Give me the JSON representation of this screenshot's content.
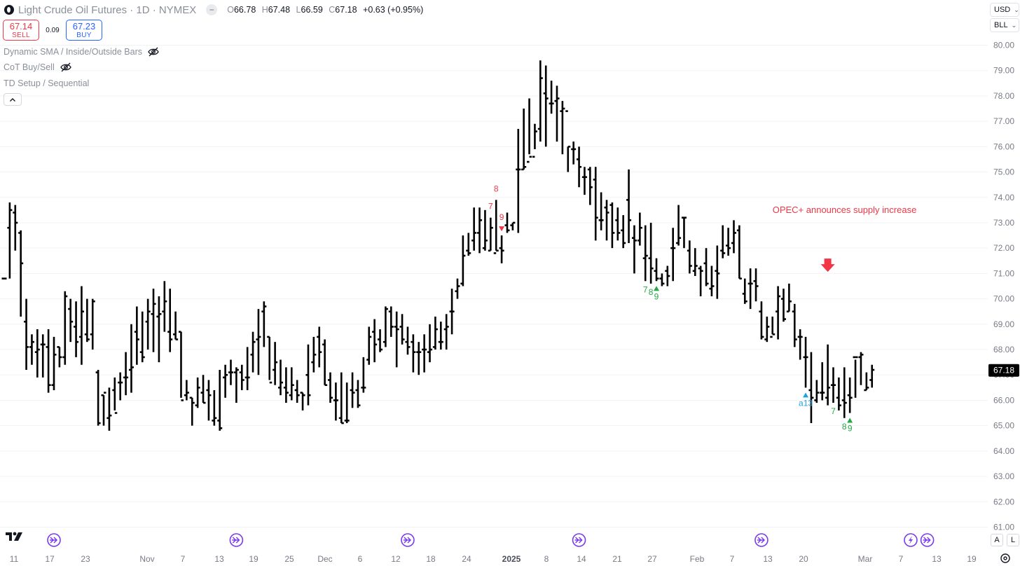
{
  "header": {
    "title": "Light Crude Oil Futures · 1D · NYMEX",
    "ohlc": {
      "o_label": "O",
      "o": "66.78",
      "h_label": "H",
      "h": "67.48",
      "l_label": "L",
      "l": "66.59",
      "c_label": "C",
      "c": "67.18",
      "change": "+0.63 (+0.95%)"
    }
  },
  "trade": {
    "sell_price": "67.14",
    "sell_label": "SELL",
    "spread": "0.09",
    "buy_price": "67.23",
    "buy_label": "BUY"
  },
  "indicators": [
    {
      "name": "Dynamic SMA / Inside/Outside Bars",
      "hidden": true
    },
    {
      "name": "CoT Buy/Sell",
      "hidden": true
    },
    {
      "name": "TD Setup / Sequential",
      "hidden": false
    }
  ],
  "controls": {
    "currency": "USD",
    "unit": "BLL",
    "auto_label": "A",
    "log_label": "L"
  },
  "colors": {
    "bar": "#000000",
    "sell": "#f23645",
    "buy_signal": "#22a846",
    "countdown": "#1fa3e0",
    "event_icon": "#7c3aed",
    "grid": "#f2f3f5",
    "price_tag_bg": "#000000"
  },
  "chart_data": {
    "type": "ohlc",
    "symbol": "Light Crude Oil Futures",
    "interval": "1D",
    "ylim": [
      61,
      80.5
    ],
    "y_ticks": [
      "80.00",
      "79.00",
      "78.00",
      "77.00",
      "76.00",
      "75.00",
      "74.00",
      "73.00",
      "72.00",
      "71.00",
      "70.00",
      "69.00",
      "68.00",
      "67.00",
      "66.00",
      "65.00",
      "64.00",
      "63.00",
      "62.00",
      "61.00"
    ],
    "x_ticks": [
      "11",
      "17",
      "23",
      "Nov",
      "7",
      "13",
      "19",
      "25",
      "Dec",
      "6",
      "12",
      "18",
      "24",
      "2025",
      "8",
      "14",
      "21",
      "27",
      "Feb",
      "7",
      "13",
      "20",
      "Mar",
      "7",
      "13",
      "19"
    ],
    "last_price": "67.18",
    "bars": [
      [
        70.8,
        70.8,
        70.8,
        70.8
      ],
      [
        72.8,
        73.8,
        70.8,
        73.5
      ],
      [
        73.4,
        73.7,
        71.9,
        73.0
      ],
      [
        72.6,
        72.7,
        69.3,
        71.4
      ],
      [
        69.1,
        70.0,
        67.2,
        68.1
      ],
      [
        68.1,
        68.6,
        67.4,
        68.3
      ],
      [
        67.9,
        68.8,
        66.9,
        68.0
      ],
      [
        68.2,
        68.6,
        66.9,
        68.2
      ],
      [
        68.1,
        68.8,
        66.3,
        66.6
      ],
      [
        66.6,
        68.5,
        66.4,
        67.8
      ],
      [
        68.1,
        68.1,
        67.3,
        67.7
      ],
      [
        67.7,
        70.3,
        67.4,
        70.1
      ],
      [
        69.6,
        70.0,
        68.3,
        69.1
      ],
      [
        68.9,
        69.9,
        67.7,
        68.3
      ],
      [
        68.5,
        70.5,
        67.4,
        69.5
      ],
      [
        68.6,
        70.0,
        68.3,
        68.4
      ],
      [
        68.6,
        70.0,
        68.0,
        69.9
      ],
      [
        67.1,
        67.2,
        65.0,
        65.1
      ],
      [
        66.2,
        66.2,
        65.0,
        66.3
      ],
      [
        65.3,
        66.5,
        64.8,
        65.4
      ],
      [
        66.4,
        66.9,
        65.6,
        65.5
      ],
      [
        66.7,
        67.1,
        66.0,
        66.7
      ],
      [
        66.9,
        67.9,
        66.2,
        66.9
      ],
      [
        67.2,
        69.0,
        66.3,
        67.3
      ],
      [
        68.7,
        69.7,
        67.4,
        68.4
      ],
      [
        67.9,
        69.5,
        67.5,
        67.7
      ],
      [
        69.1,
        70.0,
        68.0,
        69.5
      ],
      [
        69.4,
        70.4,
        67.9,
        69.8
      ],
      [
        69.3,
        70.1,
        67.5,
        69.4
      ],
      [
        69.5,
        70.7,
        68.7,
        69.9
      ],
      [
        68.7,
        70.4,
        67.9,
        68.4
      ],
      [
        68.6,
        69.5,
        68.4,
        68.4
      ],
      [
        68.7,
        68.7,
        66.1,
        66.0
      ],
      [
        66.2,
        66.8,
        66.0,
        66.3
      ],
      [
        66.1,
        66.1,
        65.0,
        65.9
      ],
      [
        65.8,
        66.9,
        65.7,
        66.5
      ],
      [
        66.3,
        67.0,
        65.9,
        65.9
      ],
      [
        66.4,
        66.8,
        65.2,
        66.2
      ],
      [
        65.2,
        66.4,
        65.0,
        65.3
      ],
      [
        65.2,
        67.2,
        64.8,
        64.9
      ],
      [
        66.9,
        67.4,
        66.1,
        67.0
      ],
      [
        67.1,
        67.6,
        66.6,
        67.1
      ],
      [
        67.1,
        67.3,
        65.9,
        67.2
      ],
      [
        67.1,
        67.4,
        66.4,
        66.8
      ],
      [
        66.9,
        68.1,
        66.4,
        66.9
      ],
      [
        67.8,
        68.7,
        67.1,
        68.3
      ],
      [
        68.4,
        69.6,
        67.0,
        68.5
      ],
      [
        69.5,
        69.9,
        68.1,
        69.7
      ],
      [
        68.5,
        68.5,
        66.8,
        66.7
      ],
      [
        67.2,
        68.3,
        66.6,
        67.5
      ],
      [
        66.5,
        67.6,
        66.2,
        66.7
      ],
      [
        66.5,
        67.3,
        65.9,
        66.3
      ],
      [
        66.2,
        67.3,
        66.0,
        66.6
      ],
      [
        66.4,
        66.8,
        65.9,
        66.2
      ],
      [
        66.3,
        66.3,
        65.6,
        66.2
      ],
      [
        67.0,
        68.2,
        65.8,
        66.2
      ],
      [
        67.5,
        68.5,
        67.1,
        67.8
      ],
      [
        68.5,
        68.9,
        67.3,
        67.9
      ],
      [
        68.2,
        68.4,
        66.6,
        66.6
      ],
      [
        66.8,
        67.1,
        65.9,
        66.1
      ],
      [
        66.0,
        66.7,
        65.2,
        66.0
      ],
      [
        65.3,
        67.1,
        65.1,
        65.1
      ],
      [
        65.2,
        66.7,
        65.1,
        65.2
      ],
      [
        66.4,
        67.1,
        65.7,
        66.3
      ],
      [
        66.4,
        66.8,
        65.7,
        65.8
      ],
      [
        66.5,
        67.7,
        66.3,
        66.5
      ],
      [
        67.6,
        68.9,
        67.4,
        68.5
      ],
      [
        68.7,
        69.2,
        67.5,
        68.2
      ],
      [
        68.4,
        68.8,
        67.9,
        68.0
      ],
      [
        68.3,
        69.7,
        68.1,
        69.6
      ],
      [
        69.5,
        69.7,
        68.5,
        68.9
      ],
      [
        68.9,
        69.5,
        67.3,
        68.8
      ],
      [
        68.9,
        69.4,
        68.2,
        68.4
      ],
      [
        68.3,
        68.9,
        67.8,
        68.1
      ],
      [
        68.3,
        68.6,
        67.1,
        67.9
      ],
      [
        67.9,
        68.3,
        67.0,
        67.9
      ],
      [
        68.0,
        68.6,
        67.1,
        68.0
      ],
      [
        67.9,
        69.0,
        67.5,
        68.0
      ],
      [
        68.1,
        69.3,
        68.0,
        68.8
      ],
      [
        68.3,
        69.1,
        68.0,
        68.3
      ],
      [
        68.8,
        69.4,
        68.0,
        68.9
      ],
      [
        69.5,
        70.4,
        68.6,
        69.5
      ],
      [
        70.3,
        70.8,
        70.0,
        70.5
      ],
      [
        70.6,
        72.5,
        70.5,
        71.7
      ],
      [
        71.9,
        72.6,
        71.7,
        71.8
      ],
      [
        72.3,
        73.6,
        71.9,
        72.6
      ],
      [
        72.6,
        73.6,
        71.8,
        73.1
      ],
      [
        72.0,
        73.5,
        71.9,
        72.3
      ],
      [
        71.9,
        73.2,
        71.9,
        72.8
      ],
      [
        71.8,
        73.9,
        71.9,
        71.9
      ],
      [
        72.0,
        72.5,
        71.4,
        71.9
      ],
      [
        72.9,
        73.4,
        72.6,
        72.7
      ],
      [
        72.9,
        73.0,
        72.7,
        73.0
      ],
      [
        75.1,
        76.7,
        72.6,
        75.1
      ],
      [
        75.1,
        77.5,
        75.1,
        75.2
      ],
      [
        75.4,
        77.9,
        75.7,
        75.6
      ],
      [
        75.6,
        76.9,
        75.9,
        76.6
      ],
      [
        76.7,
        79.4,
        76.2,
        78.7
      ],
      [
        78.1,
        79.2,
        76.0,
        77.9
      ],
      [
        77.7,
        78.6,
        77.3,
        77.7
      ],
      [
        77.8,
        78.4,
        76.2,
        77.9
      ],
      [
        77.4,
        77.8,
        75.7,
        77.5
      ],
      [
        77.4,
        76.0,
        75.0,
        76.0
      ],
      [
        75.9,
        76.2,
        75.3,
        75.9
      ],
      [
        75.5,
        76.0,
        74.4,
        75.2
      ],
      [
        74.8,
        75.2,
        74.1,
        74.8
      ],
      [
        75.1,
        75.2,
        73.7,
        74.4
      ],
      [
        74.7,
        75.2,
        72.3,
        73.2
      ],
      [
        73.1,
        74.2,
        72.7,
        73.1
      ],
      [
        73.6,
        73.9,
        72.3,
        73.4
      ],
      [
        73.7,
        73.8,
        72.0,
        72.6
      ],
      [
        73.1,
        73.6,
        72.3,
        72.6
      ],
      [
        72.7,
        73.3,
        72.0,
        72.2
      ],
      [
        73.9,
        75.1,
        72.2,
        73.1
      ],
      [
        72.4,
        72.9,
        71.0,
        72.3
      ],
      [
        72.3,
        73.4,
        72.1,
        72.8
      ],
      [
        71.6,
        72.9,
        70.7,
        71.7
      ],
      [
        71.6,
        73.0,
        70.6,
        71.2
      ],
      [
        71.1,
        71.6,
        70.7,
        70.8
      ],
      [
        70.8,
        71.0,
        70.5,
        70.6
      ],
      [
        71.1,
        71.3,
        70.5,
        70.9
      ],
      [
        72.0,
        72.8,
        70.7,
        72.0
      ],
      [
        72.2,
        73.7,
        72.1,
        72.4
      ],
      [
        73.2,
        73.2,
        72.0,
        73.2
      ],
      [
        71.9,
        72.3,
        71.0,
        71.3
      ],
      [
        71.1,
        72.0,
        70.9,
        71.3
      ],
      [
        71.2,
        71.3,
        70.1,
        71.1
      ],
      [
        71.4,
        72.0,
        70.5,
        70.6
      ],
      [
        70.4,
        71.3,
        70.1,
        70.5
      ],
      [
        71.1,
        72.1,
        70.0,
        71.0
      ],
      [
        71.9,
        72.9,
        71.6,
        71.8
      ],
      [
        72.1,
        72.8,
        71.7,
        72.0
      ],
      [
        72.2,
        73.1,
        71.8,
        72.6
      ],
      [
        72.7,
        72.9,
        70.8,
        70.8
      ],
      [
        70.2,
        70.8,
        69.8,
        69.9
      ],
      [
        70.6,
        71.2,
        69.6,
        70.6
      ],
      [
        70.7,
        71.2,
        69.9,
        70.5
      ],
      [
        69.5,
        69.9,
        68.4,
        68.5
      ],
      [
        68.4,
        69.3,
        68.3,
        68.9
      ],
      [
        68.5,
        69.3,
        68.6,
        68.6
      ],
      [
        69.5,
        70.5,
        68.4,
        70.1
      ],
      [
        70.0,
        70.4,
        69.1,
        69.2
      ],
      [
        69.5,
        70.6,
        69.5,
        69.9
      ],
      [
        69.5,
        69.8,
        68.1,
        68.4
      ],
      [
        68.5,
        68.8,
        67.6,
        68.5
      ],
      [
        67.7,
        68.5,
        66.5,
        67.7
      ],
      [
        66.4,
        67.9,
        65.1,
        66.1
      ],
      [
        66.0,
        66.8,
        65.9,
        66.3
      ],
      [
        66.3,
        67.5,
        66.0,
        66.3
      ],
      [
        66.1,
        68.2,
        65.8,
        66.5
      ],
      [
        66.6,
        67.3,
        65.9,
        66.6
      ],
      [
        66.1,
        66.9,
        65.6,
        65.8
      ],
      [
        66.0,
        67.3,
        65.3,
        65.9
      ],
      [
        66.2,
        66.9,
        65.5,
        66.1
      ],
      [
        67.7,
        67.6,
        66.1,
        67.7
      ],
      [
        67.7,
        67.9,
        66.6,
        67.8
      ],
      [
        66.4,
        67.1,
        66.4,
        66.5
      ],
      [
        66.8,
        67.4,
        66.5,
        67.2
      ]
    ],
    "annotations": [
      {
        "text": "OPEC+ announces supply increase",
        "price": 73.5,
        "bar": 139,
        "color": "#f23645"
      }
    ],
    "td_labels": [
      {
        "bar": 88,
        "text": "7",
        "color": "#f23645",
        "pos": "above"
      },
      {
        "bar": 89,
        "text": "8",
        "color": "#f23645",
        "pos": "above"
      },
      {
        "bar": 90,
        "text": "9",
        "color": "#f23645",
        "pos": "above",
        "arrow": "down"
      },
      {
        "bar": 116,
        "text": "7",
        "color": "#22a846",
        "pos": "below"
      },
      {
        "bar": 117,
        "text": "8",
        "color": "#22a846",
        "pos": "below"
      },
      {
        "bar": 118,
        "text": "9",
        "color": "#22a846",
        "pos": "below",
        "arrow": "up"
      },
      {
        "bar": 145,
        "text": "a13",
        "color": "#1fa3e0",
        "pos": "below",
        "arrow": "up"
      },
      {
        "bar": 150,
        "text": "7",
        "color": "#22a846",
        "pos": "below"
      },
      {
        "bar": 152,
        "text": "8",
        "color": "#22a846",
        "pos": "below"
      },
      {
        "bar": 153,
        "text": "9",
        "color": "#22a846",
        "pos": "below",
        "arrow": "up"
      }
    ],
    "signal_arrow": {
      "bar": 149,
      "price": 71.2,
      "direction": "down",
      "color": "#f23645"
    },
    "event_markers": [
      {
        "bar": 9,
        "icon": "event-arrows-icon"
      },
      {
        "bar": 42,
        "icon": "event-arrows-icon"
      },
      {
        "bar": 73,
        "icon": "event-arrows-icon"
      },
      {
        "bar": 104,
        "icon": "event-arrows-icon"
      },
      {
        "bar": 137,
        "icon": "event-arrows-icon"
      },
      {
        "bar": 164,
        "icon": "event-lightning-icon"
      },
      {
        "bar": 167,
        "icon": "event-arrows-icon"
      }
    ]
  }
}
